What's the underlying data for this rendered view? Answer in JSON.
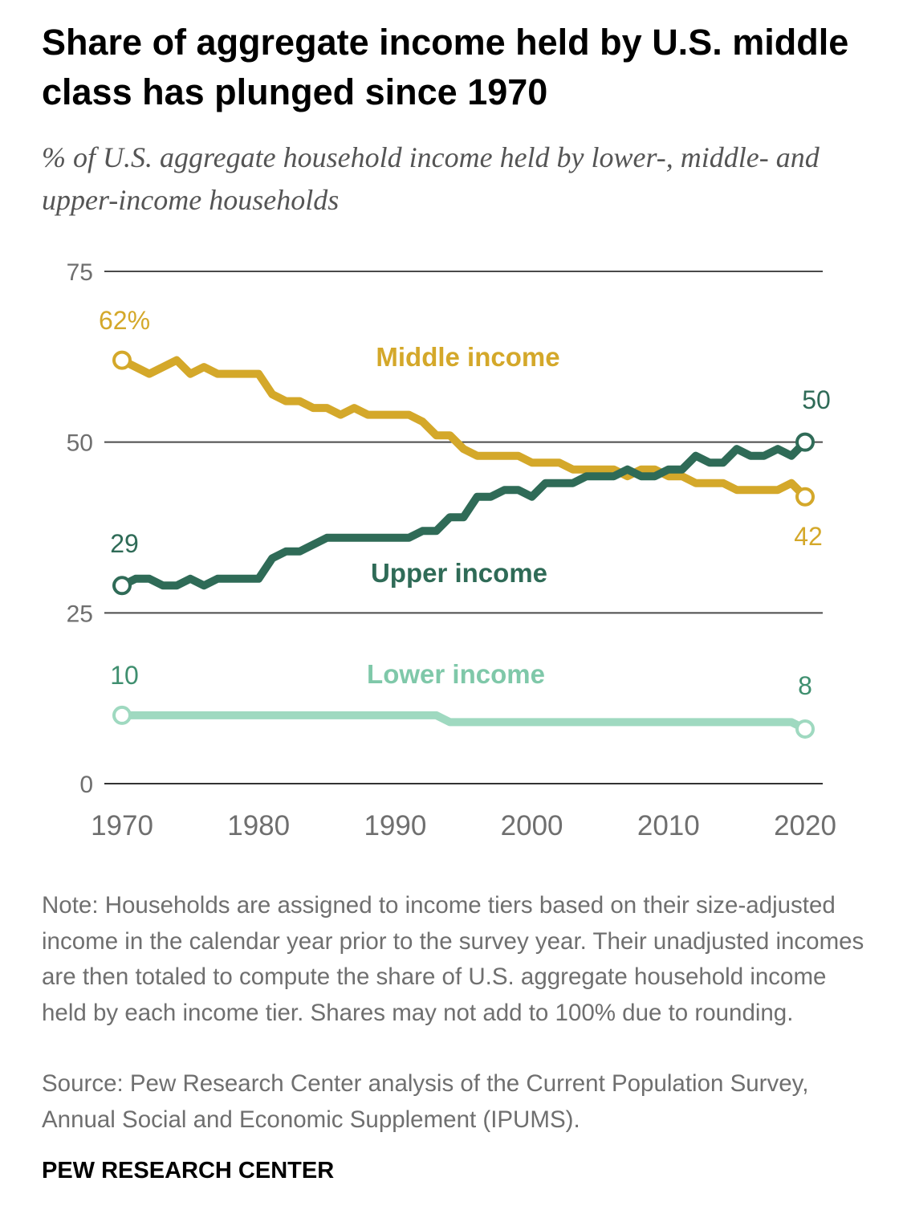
{
  "header": {
    "title": "Share of aggregate income held by U.S. middle class has plunged since 1970",
    "subtitle": "% of U.S. aggregate household income held by lower-, middle- and upper-income households"
  },
  "footer": {
    "note": "Note: Households are assigned to income tiers based on their size-adjusted income in the calendar year prior to the survey year. Their unadjusted incomes are then totaled to compute the share of U.S. aggregate household income held by each income tier. Shares may not add to 100% due to rounding.",
    "source": "Source: Pew Research Center analysis of the Current Population Survey, Annual Social and Economic Supplement (IPUMS).",
    "brand": "PEW RESEARCH CENTER"
  },
  "chart_data": {
    "type": "line",
    "title": "Share of aggregate income held by U.S. middle class has plunged since 1970",
    "subtitle": "% of U.S. aggregate household income held by lower-, middle- and upper-income households",
    "xlabel": "",
    "ylabel": "",
    "xlim": [
      1970,
      2020
    ],
    "ylim": [
      0,
      75
    ],
    "x_ticks": [
      1970,
      1980,
      1990,
      2000,
      2010,
      2020
    ],
    "y_ticks": [
      0,
      25,
      50,
      75
    ],
    "grid": "horizontal",
    "legend": "direct labels",
    "x": [
      1970,
      1971,
      1972,
      1973,
      1974,
      1975,
      1976,
      1977,
      1978,
      1979,
      1980,
      1981,
      1982,
      1983,
      1984,
      1985,
      1986,
      1987,
      1988,
      1989,
      1990,
      1991,
      1992,
      1993,
      1994,
      1995,
      1996,
      1997,
      1998,
      1999,
      2000,
      2001,
      2002,
      2003,
      2004,
      2005,
      2006,
      2007,
      2008,
      2009,
      2010,
      2011,
      2012,
      2013,
      2014,
      2015,
      2016,
      2017,
      2018,
      2019,
      2020
    ],
    "series": [
      {
        "name": "Middle income",
        "color": "#d4a82a",
        "values": [
          62,
          61,
          60,
          61,
          62,
          60,
          61,
          60,
          60,
          60,
          60,
          57,
          56,
          56,
          55,
          55,
          54,
          55,
          54,
          54,
          54,
          54,
          53,
          51,
          51,
          49,
          48,
          48,
          48,
          48,
          47,
          47,
          47,
          46,
          46,
          46,
          46,
          45,
          46,
          46,
          45,
          45,
          44,
          44,
          44,
          43,
          43,
          43,
          43,
          44,
          42
        ],
        "start_label": "62%",
        "end_label": "42"
      },
      {
        "name": "Upper income",
        "color": "#2f6b57",
        "values": [
          29,
          30,
          30,
          29,
          29,
          30,
          29,
          30,
          30,
          30,
          30,
          33,
          34,
          34,
          35,
          36,
          36,
          36,
          36,
          36,
          36,
          36,
          37,
          37,
          39,
          39,
          42,
          42,
          43,
          43,
          42,
          44,
          44,
          44,
          45,
          45,
          45,
          46,
          45,
          45,
          46,
          46,
          48,
          47,
          47,
          49,
          48,
          48,
          49,
          48,
          50
        ],
        "start_label": "29",
        "end_label": "50"
      },
      {
        "name": "Lower income",
        "color": "#9fd9c0",
        "values": [
          10,
          10,
          10,
          10,
          10,
          10,
          10,
          10,
          10,
          10,
          10,
          10,
          10,
          10,
          10,
          10,
          10,
          10,
          10,
          10,
          10,
          10,
          10,
          10,
          9,
          9,
          9,
          9,
          9,
          9,
          9,
          9,
          9,
          9,
          9,
          9,
          9,
          9,
          9,
          9,
          9,
          9,
          9,
          9,
          9,
          9,
          9,
          9,
          9,
          9,
          8
        ],
        "start_label": "10",
        "end_label": "8"
      }
    ]
  }
}
